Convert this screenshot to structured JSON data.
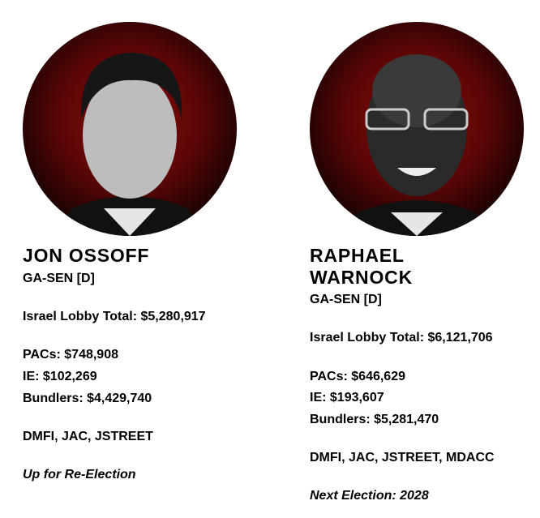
{
  "profiles": [
    {
      "name": "JON OSSOFF",
      "race": "GA-SEN [D]",
      "lobby_total": "Israel Lobby Total: $5,280,917",
      "pacs": "PACs: $748,908",
      "ie": "IE: $102,269",
      "bundlers": "Bundlers: $4,429,740",
      "groups": "DMFI, JAC, JSTREET",
      "status": "Up for Re-Election"
    },
    {
      "name": "RAPHAEL WARNOCK",
      "race": "GA-SEN [D]",
      "lobby_total": "Israel Lobby Total: $6,121,706",
      "pacs": "PACs: $646,629",
      "ie": "IE: $193,607",
      "bundlers": "Bundlers: $5,281,470",
      "groups": "DMFI, JAC, JSTREET, MDACC",
      "status": "Next Election: 2028"
    }
  ]
}
